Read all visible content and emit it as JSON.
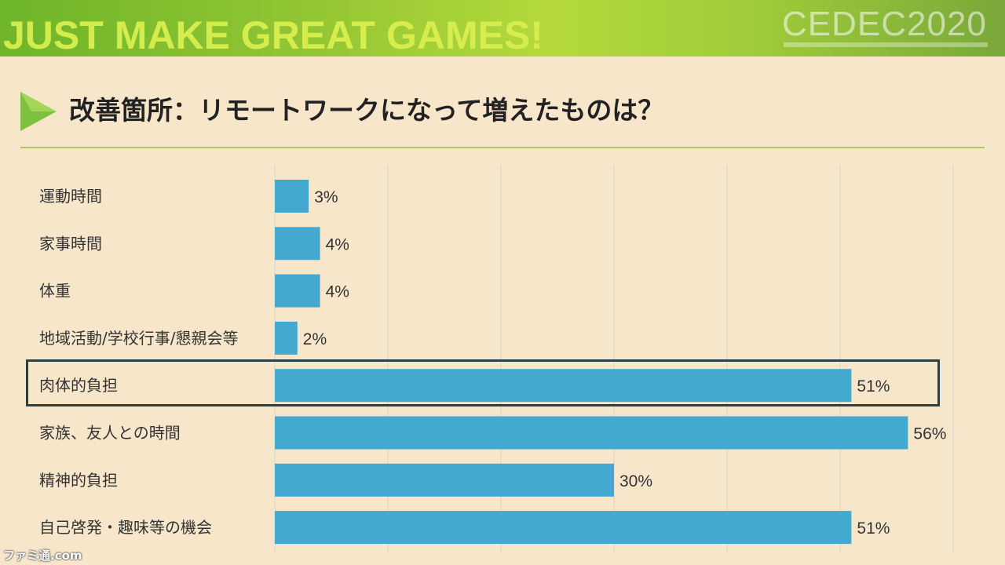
{
  "banner": {
    "tagline": "JUST MAKE GREAT GAMES!",
    "logo": "CEDEC2020"
  },
  "slide": {
    "title": "改善箇所：リモートワークになって増えたものは？"
  },
  "watermark": "ファミ通.com",
  "colors": {
    "bar": "#43a9cf",
    "grid": "#d3d3d3",
    "accent": "#8cc63f"
  },
  "chart_data": {
    "type": "bar",
    "orientation": "horizontal",
    "categories": [
      "運動時間",
      "家事時間",
      "体重",
      "地域活動/学校行事/懇親会等",
      "肉体的負担",
      "家族、友人との時間",
      "精神的負担",
      "自己啓発・趣味等の機会"
    ],
    "values": [
      3,
      4,
      4,
      2,
      51,
      56,
      30,
      51
    ],
    "value_labels": [
      "3%",
      "4%",
      "4%",
      "2%",
      "51%",
      "56%",
      "30%",
      "51%"
    ],
    "xlim": [
      0,
      60
    ],
    "grid": true,
    "highlighted_category": "肉体的負担"
  }
}
